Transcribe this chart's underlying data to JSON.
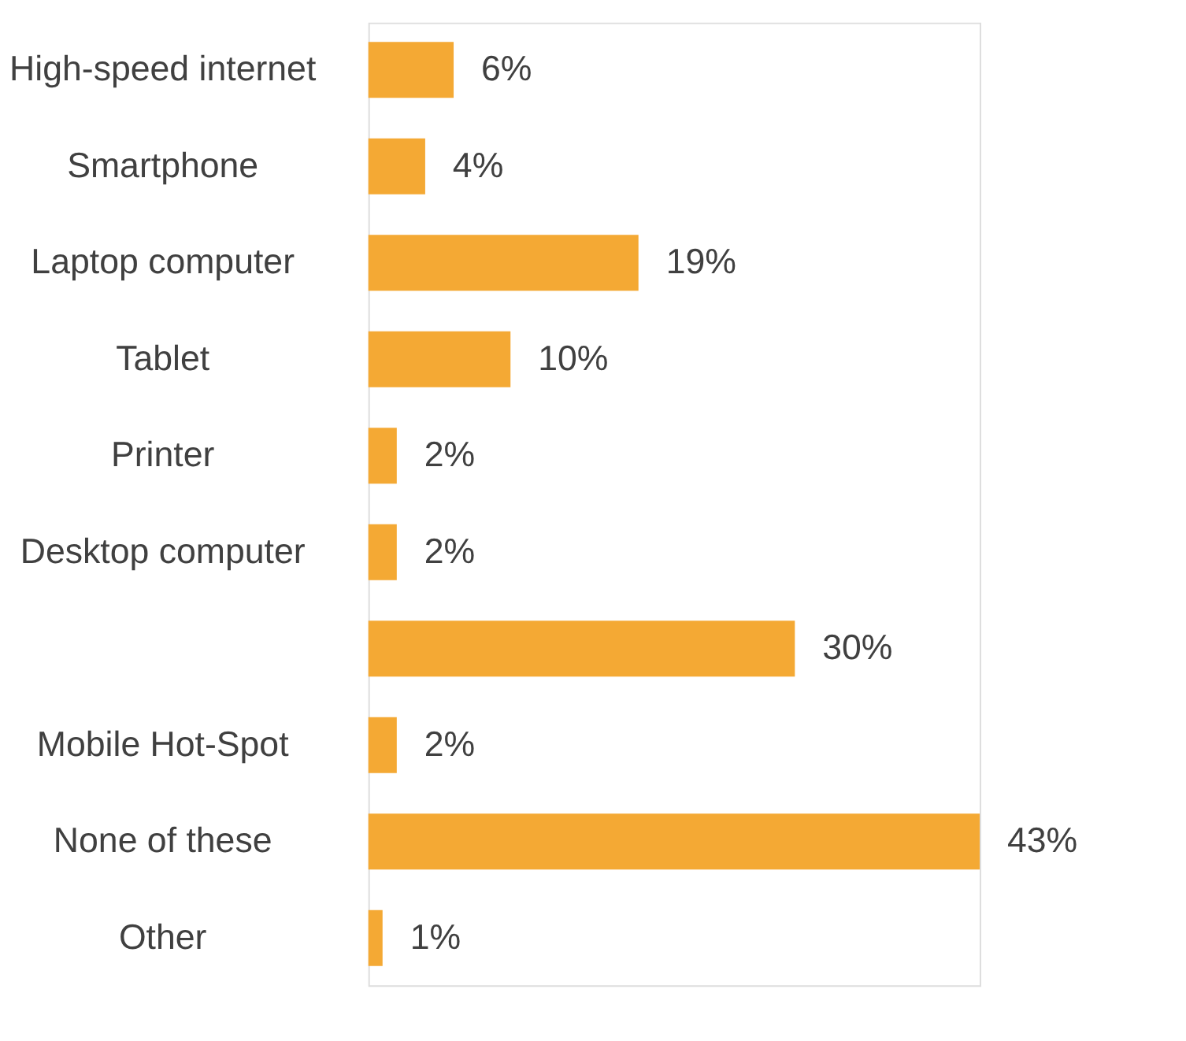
{
  "chart_data": {
    "type": "bar",
    "orientation": "horizontal",
    "categories": [
      "High-speed internet",
      "Smartphone",
      "Laptop computer",
      "Tablet",
      "Printer",
      "Desktop computer",
      null,
      "Mobile Hot-Spot",
      "None of these",
      "Other"
    ],
    "values": [
      6,
      4,
      19,
      10,
      2,
      2,
      30,
      2,
      43,
      1
    ],
    "value_labels": [
      "6%",
      "4%",
      "19%",
      "10%",
      "2%",
      "2%",
      "30%",
      "2%",
      "43%",
      "1%"
    ],
    "color": "#f4a934"
  }
}
